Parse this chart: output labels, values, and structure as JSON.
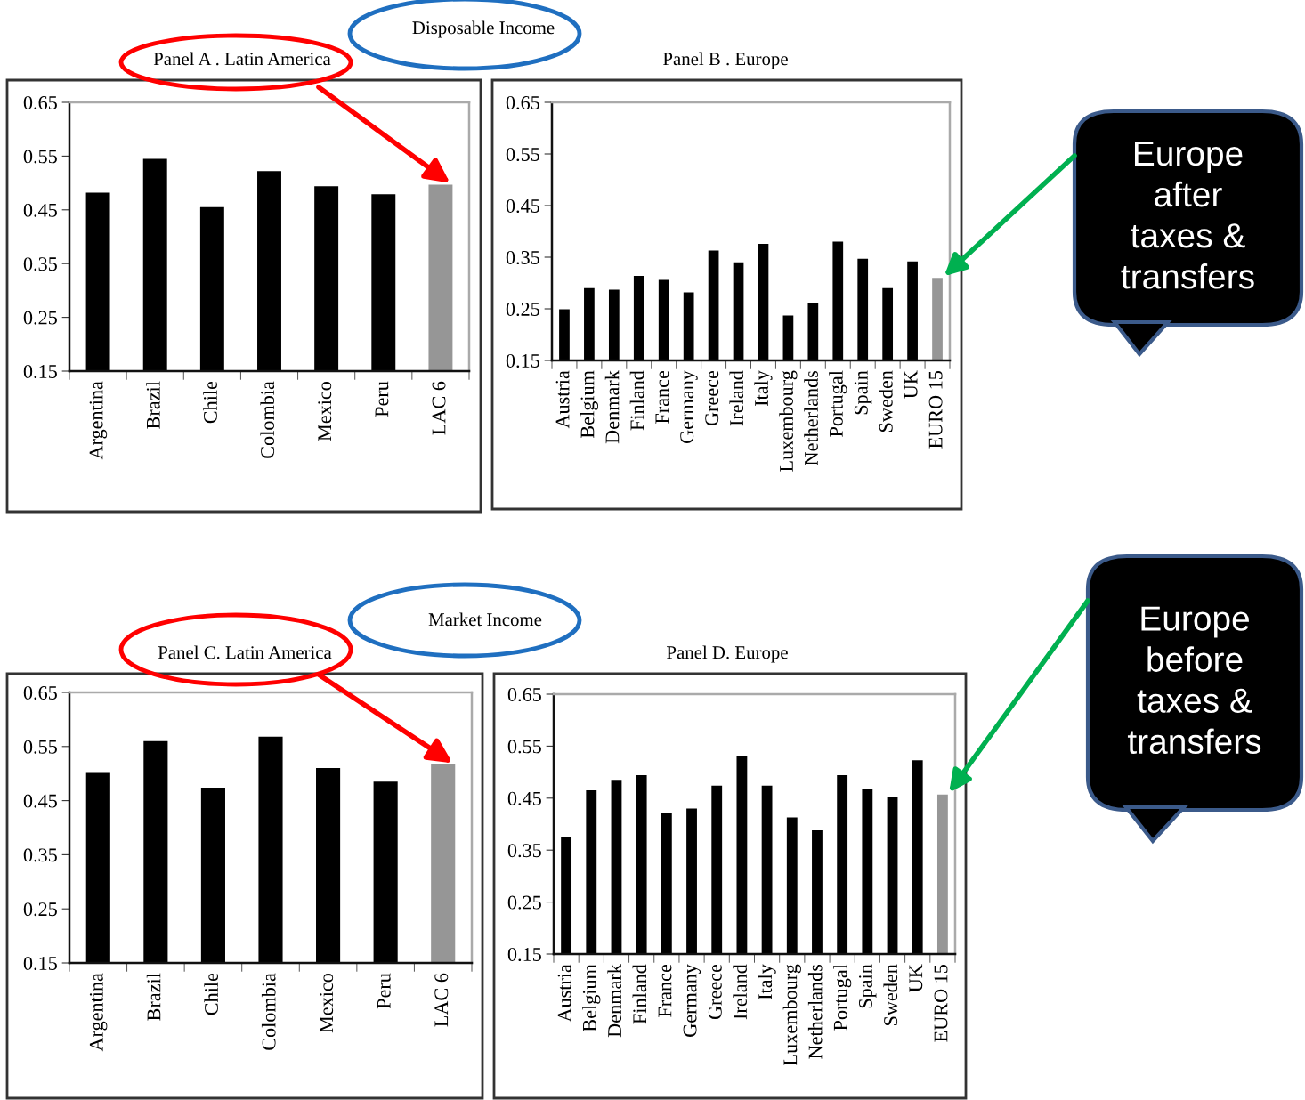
{
  "chart_data": [
    {
      "type": "bar",
      "title": "Panel A . Latin America",
      "categories": [
        "Argentina",
        "Brazil",
        "Chile",
        "Colombia",
        "Mexico",
        "Peru",
        "LAC 6"
      ],
      "values": [
        0.482,
        0.545,
        0.455,
        0.522,
        0.494,
        0.479,
        0.497
      ],
      "colors": [
        "#000000",
        "#000000",
        "#000000",
        "#000000",
        "#000000",
        "#000000",
        "#969696"
      ],
      "ylim": [
        0.15,
        0.65
      ],
      "yticks": [
        0.15,
        0.25,
        0.35,
        0.45,
        0.55,
        0.65
      ],
      "annotations": [
        "Disposable Income"
      ]
    },
    {
      "type": "bar",
      "title": "Panel B . Europe",
      "categories": [
        "Austria",
        "Belgium",
        "Denmark",
        "Finland",
        "France",
        "Germany",
        "Greece",
        "Ireland",
        "Italy",
        "Luxembourg",
        "Netherlands",
        "Portugal",
        "Spain",
        "Sweden",
        "UK",
        "EURO 15"
      ],
      "values": [
        0.249,
        0.29,
        0.287,
        0.314,
        0.306,
        0.282,
        0.363,
        0.34,
        0.376,
        0.237,
        0.261,
        0.38,
        0.347,
        0.29,
        0.342,
        0.31
      ],
      "colors": [
        "#000000",
        "#000000",
        "#000000",
        "#000000",
        "#000000",
        "#000000",
        "#000000",
        "#000000",
        "#000000",
        "#000000",
        "#000000",
        "#000000",
        "#000000",
        "#000000",
        "#000000",
        "#969696"
      ],
      "ylim": [
        0.15,
        0.65
      ],
      "yticks": [
        0.15,
        0.25,
        0.35,
        0.45,
        0.55,
        0.65
      ],
      "annotations": [
        "Europe\nafter\ntaxes &\ntransfers"
      ]
    },
    {
      "type": "bar",
      "title": "Panel C. Latin America",
      "categories": [
        "Argentina",
        "Brazil",
        "Chile",
        "Colombia",
        "Mexico",
        "Peru",
        "LAC 6"
      ],
      "values": [
        0.501,
        0.56,
        0.474,
        0.568,
        0.51,
        0.485,
        0.517
      ],
      "colors": [
        "#000000",
        "#000000",
        "#000000",
        "#000000",
        "#000000",
        "#000000",
        "#969696"
      ],
      "ylim": [
        0.15,
        0.65
      ],
      "yticks": [
        0.15,
        0.25,
        0.35,
        0.45,
        0.55,
        0.65
      ],
      "annotations": [
        "Market Income"
      ]
    },
    {
      "type": "bar",
      "title": "Panel D. Europe",
      "categories": [
        "Austria",
        "Belgium",
        "Denmark",
        "Finland",
        "France",
        "Germany",
        "Greece",
        "Ireland",
        "Italy",
        "Luxembourg",
        "Netherlands",
        "Portugal",
        "Spain",
        "Sweden",
        "UK",
        "EURO 15"
      ],
      "values": [
        0.376,
        0.465,
        0.485,
        0.494,
        0.421,
        0.43,
        0.474,
        0.531,
        0.474,
        0.413,
        0.388,
        0.494,
        0.468,
        0.452,
        0.523,
        0.457
      ],
      "colors": [
        "#000000",
        "#000000",
        "#000000",
        "#000000",
        "#000000",
        "#000000",
        "#000000",
        "#000000",
        "#000000",
        "#000000",
        "#000000",
        "#000000",
        "#000000",
        "#000000",
        "#000000",
        "#969696"
      ],
      "ylim": [
        0.15,
        0.65
      ],
      "yticks": [
        0.15,
        0.25,
        0.35,
        0.45,
        0.55,
        0.65
      ],
      "annotations": [
        "Europe\nbefore\ntaxes &\ntransfers"
      ]
    }
  ]
}
